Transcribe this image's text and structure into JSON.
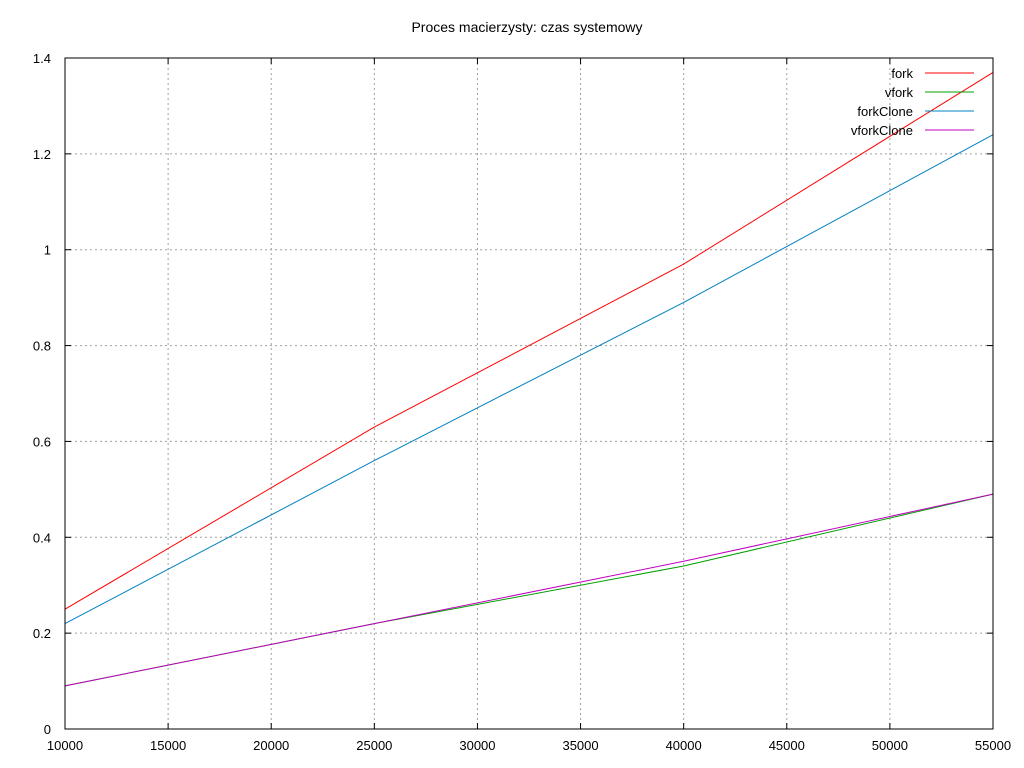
{
  "chart_data": {
    "type": "line",
    "title": "Proces macierzysty: czas systemowy",
    "xlabel": "",
    "ylabel": "",
    "xlim": [
      10000,
      55000
    ],
    "ylim": [
      0,
      1.4
    ],
    "x_ticks": [
      "10000",
      "15000",
      "20000",
      "25000",
      "30000",
      "35000",
      "40000",
      "45000",
      "50000",
      "55000"
    ],
    "y_ticks": [
      "0",
      "0.2",
      "0.4",
      "0.6",
      "0.8",
      "1",
      "1.2",
      "1.4"
    ],
    "grid": true,
    "legend_position": "top-right",
    "x": [
      10000,
      25000,
      40000,
      55000
    ],
    "series": [
      {
        "name": "fork",
        "color": "#ff0000",
        "values": [
          0.25,
          0.63,
          0.97,
          1.37
        ]
      },
      {
        "name": "vfork",
        "color": "#00a000",
        "values": [
          0.09,
          0.22,
          0.34,
          0.49
        ]
      },
      {
        "name": "forkClone",
        "color": "#0080c0",
        "values": [
          0.22,
          0.56,
          0.89,
          1.24
        ]
      },
      {
        "name": "vforkClone",
        "color": "#c000c0",
        "values": [
          0.09,
          0.22,
          0.35,
          0.49
        ]
      }
    ]
  }
}
